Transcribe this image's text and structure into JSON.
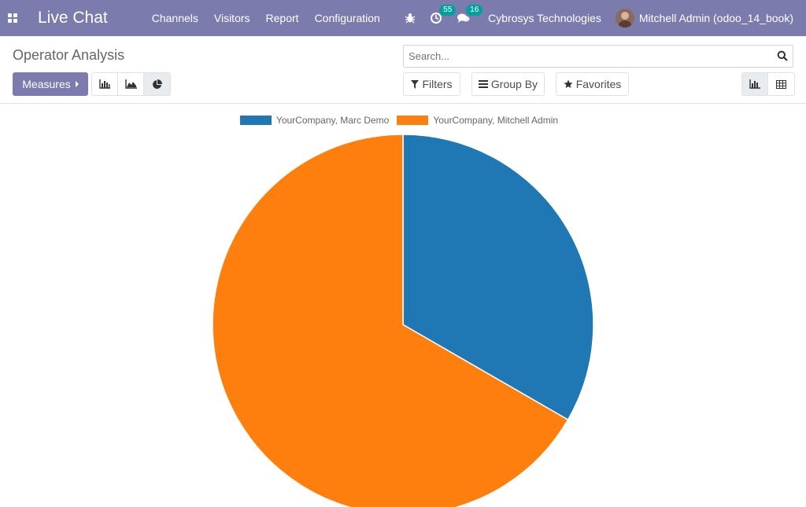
{
  "navbar": {
    "app_title": "Live Chat",
    "menu": [
      "Channels",
      "Visitors",
      "Report",
      "Configuration"
    ],
    "activity_badge": "55",
    "messages_badge": "16",
    "company": "Cybrosys Technologies",
    "user": "Mitchell Admin (odoo_14_book)"
  },
  "control_panel": {
    "breadcrumb": "Operator Analysis",
    "search_placeholder": "Search...",
    "measures_label": "Measures",
    "filters_label": "Filters",
    "groupby_label": "Group By",
    "favorites_label": "Favorites",
    "active_chart_mode": "pie",
    "active_view": "graph"
  },
  "chart_data": {
    "type": "pie",
    "series": [
      {
        "name": "YourCompany, Marc Demo",
        "value": 1,
        "color": "#1f77b4"
      },
      {
        "name": "YourCompany, Mitchell Admin",
        "value": 2,
        "color": "#ff7f0e"
      }
    ],
    "legend_position": "top"
  },
  "colors": {
    "navbar": "#7c7bad",
    "primary": "#7c7bad",
    "badge": "#00a09d"
  }
}
